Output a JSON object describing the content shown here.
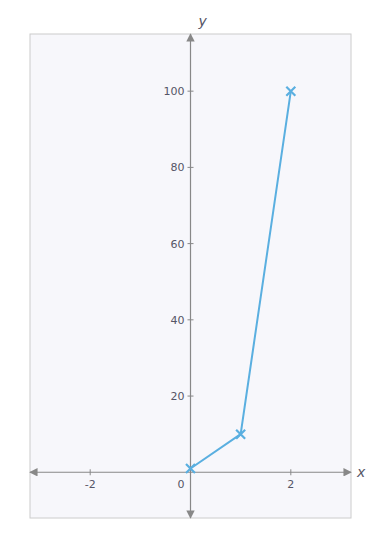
{
  "chart_data": {
    "type": "line",
    "x": [
      0,
      1,
      2
    ],
    "values": [
      1,
      10,
      100
    ],
    "color": "#5aafe0",
    "marker": "x",
    "xlabel": "x",
    "ylabel": "y",
    "xlim": [
      -3.2,
      3.2
    ],
    "ylim": [
      -12,
      115
    ],
    "xticks": [
      -2,
      0,
      2
    ],
    "yticks": [
      20,
      40,
      60,
      80,
      100
    ],
    "grid": false
  }
}
